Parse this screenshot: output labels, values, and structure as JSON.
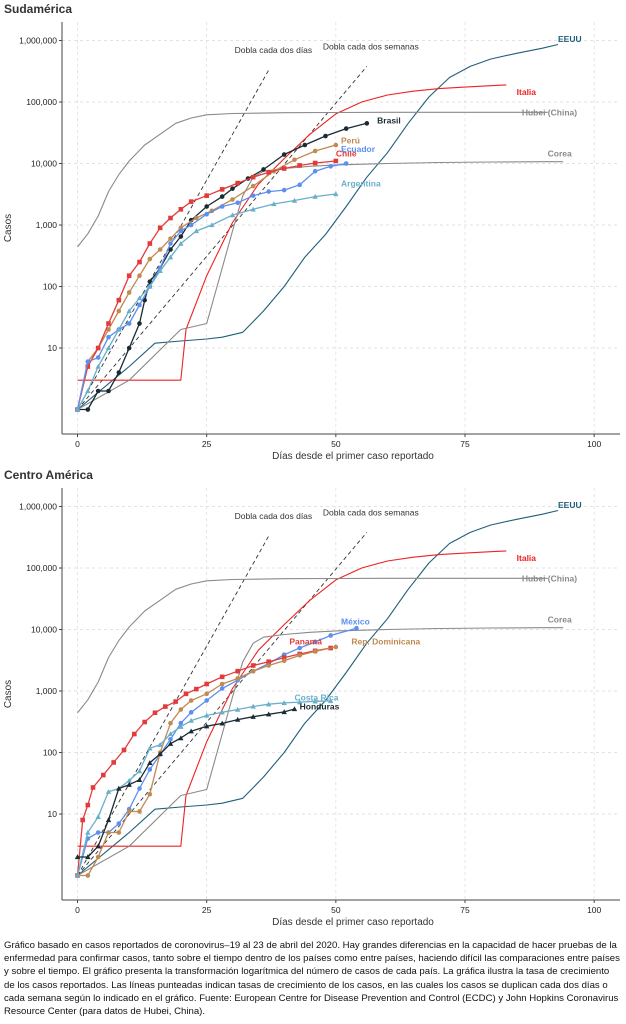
{
  "caption": "Gráfico basado en casos reportados de coronovirus–19 al 23 de abril del 2020. Hay grandes diferencias en la capacidad de hacer pruebas de la enfermedad para confirmar casos, tanto sobre el tiempo dentro de los países como entre países, haciendo difícil las comparaciones entre países y sobre el tiempo.  El gráfico presenta la transformación logarítmica del número de casos de cada país. La gráfica ilustra la tasa de crecimiento de los casos reportados. Las líneas punteadas indican tasas de crecimiento de los casos, en las cuales los casos se duplican cada dos días o cada semana según lo indicado en el gráfico. Fuente: European Centre for Disease Prevention and Control (ECDC) y John Hopkins Coronavirus Resource Center (para datos de Hubei, China).",
  "colors": {
    "EEUU": "#1f5f7a",
    "Italia": "#ee2222",
    "Hubei (China)": "#8a8a8a",
    "Corea": "#8a8a8a",
    "Brasil": "#1a2b33",
    "Perú": "#c08a50",
    "Chile": "#e23b3b",
    "Ecuador": "#5b8ff0",
    "Argentina": "#69afc9",
    "México": "#5b8ff0",
    "Panamá": "#e23b3b",
    "Rep. Dominicana": "#c08a50",
    "Costa Rica": "#69afc9",
    "Honduras": "#1a2b33"
  },
  "chart_data": [
    {
      "type": "line",
      "title": "Sudamérica",
      "xlabel": "Días desde el primer caso reportado",
      "ylabel": "Casos",
      "xlim": [
        -3,
        105
      ],
      "ylim": [
        0.4,
        2000000
      ],
      "yscale": "log",
      "grid": true,
      "xticks": [
        0,
        25,
        50,
        75,
        100
      ],
      "xtick_labels": [
        "0",
        "25",
        "50",
        "75",
        "100"
      ],
      "yticks": [
        10,
        100,
        1000,
        10000,
        100000,
        1000000
      ],
      "ytick_labels": [
        "10",
        "100",
        "1,000",
        "10,000",
        "100,000",
        "1,000,000"
      ],
      "reference_lines": [
        {
          "name": "Dobla cada dos días",
          "points": [
            [
              0,
              1
            ],
            [
              37,
              330000
            ]
          ]
        },
        {
          "name": "Dobla cada dos semanas",
          "points": [
            [
              0,
              1
            ],
            [
              56,
              380000
            ]
          ]
        }
      ],
      "series": [
        {
          "name": "EEUU",
          "marker": "none",
          "label_at": [
            93,
            950000
          ],
          "x": [
            0,
            10,
            15,
            20,
            25,
            28,
            32,
            36,
            40,
            44,
            48,
            52,
            56,
            60,
            64,
            68,
            72,
            76,
            80,
            85,
            90,
            93
          ],
          "y": [
            1,
            5,
            12,
            13,
            14,
            15,
            18,
            40,
            100,
            300,
            700,
            2000,
            6000,
            15000,
            45000,
            120000,
            250000,
            380000,
            500000,
            620000,
            750000,
            860000
          ]
        },
        {
          "name": "Italia",
          "marker": "none",
          "label_at": [
            85,
            130000
          ],
          "x": [
            0,
            20,
            21,
            25,
            30,
            35,
            40,
            45,
            50,
            55,
            60,
            65,
            70,
            75,
            80,
            83
          ],
          "y": [
            3,
            3,
            20,
            150,
            1100,
            4600,
            12000,
            30000,
            64000,
            100000,
            130000,
            150000,
            165000,
            175000,
            184000,
            190000
          ]
        },
        {
          "name": "Hubei (China)",
          "marker": "none",
          "label_at": [
            86,
            60000
          ],
          "x": [
            0,
            2,
            4,
            6,
            8,
            10,
            13,
            16,
            19,
            22,
            25,
            30,
            40,
            50,
            60,
            70,
            80,
            91
          ],
          "y": [
            440,
            720,
            1400,
            3500,
            6600,
            11000,
            20000,
            30000,
            45000,
            55000,
            62000,
            65000,
            67000,
            67500,
            68000,
            68100,
            68100,
            68130
          ]
        },
        {
          "name": "Corea",
          "marker": "none",
          "label_at": [
            91,
            13000
          ],
          "x": [
            0,
            10,
            20,
            25,
            28,
            30,
            32,
            34,
            36,
            40,
            45,
            50,
            60,
            70,
            80,
            90,
            94
          ],
          "y": [
            1,
            3,
            20,
            25,
            200,
            800,
            3000,
            6000,
            7500,
            8300,
            9000,
            9500,
            10000,
            10400,
            10600,
            10700,
            10700
          ]
        },
        {
          "name": "Brasil",
          "marker": "circle",
          "label_at": [
            58,
            45000
          ],
          "x": [
            0,
            2,
            4,
            6,
            8,
            10,
            12,
            13,
            14,
            16,
            18,
            20,
            22,
            25,
            28,
            30,
            33,
            36,
            40,
            44,
            48,
            52,
            56
          ],
          "y": [
            1,
            1,
            2,
            2,
            4,
            10,
            25,
            60,
            120,
            200,
            400,
            650,
            1200,
            2000,
            2900,
            3900,
            5700,
            8000,
            14000,
            20000,
            28000,
            37000,
            45000
          ]
        },
        {
          "name": "Perú",
          "marker": "circle",
          "label_at": [
            51,
            21000
          ],
          "x": [
            0,
            2,
            4,
            6,
            8,
            10,
            12,
            14,
            16,
            18,
            20,
            23,
            26,
            30,
            34,
            38,
            42,
            46,
            50
          ],
          "y": [
            1,
            6,
            10,
            20,
            40,
            80,
            150,
            280,
            400,
            600,
            900,
            1300,
            1700,
            2600,
            4300,
            7500,
            11500,
            16000,
            20000
          ]
        },
        {
          "name": "Chile",
          "marker": "square",
          "label_at": [
            50,
            13000
          ],
          "x": [
            0,
            2,
            4,
            6,
            8,
            10,
            12,
            14,
            16,
            18,
            20,
            22,
            25,
            28,
            31,
            34,
            37,
            40,
            43,
            46,
            50
          ],
          "y": [
            1,
            5,
            10,
            25,
            60,
            150,
            250,
            500,
            900,
            1300,
            1800,
            2400,
            3000,
            3800,
            4800,
            6000,
            7200,
            8300,
            9300,
            10200,
            11000
          ]
        },
        {
          "name": "Ecuador",
          "marker": "circle",
          "label_at": [
            51,
            15500
          ],
          "x": [
            0,
            2,
            4,
            6,
            8,
            10,
            12,
            14,
            16,
            18,
            20,
            22,
            25,
            28,
            31,
            34,
            37,
            40,
            43,
            46,
            49,
            52
          ],
          "y": [
            1,
            6,
            7,
            15,
            20,
            25,
            50,
            100,
            200,
            500,
            800,
            1000,
            1500,
            2000,
            2300,
            3000,
            3500,
            3700,
            4500,
            7500,
            9000,
            10000
          ]
        },
        {
          "name": "Argentina",
          "marker": "triangle",
          "label_at": [
            51,
            4200
          ],
          "x": [
            0,
            2,
            4,
            6,
            8,
            10,
            12,
            14,
            16,
            18,
            20,
            23,
            26,
            30,
            34,
            38,
            42,
            46,
            50
          ],
          "y": [
            1,
            2,
            5,
            10,
            20,
            40,
            65,
            100,
            180,
            300,
            500,
            800,
            1000,
            1450,
            1800,
            2200,
            2500,
            2900,
            3200
          ]
        }
      ]
    },
    {
      "type": "line",
      "title": "Centro América",
      "xlabel": "Días desde el primer caso reportado",
      "ylabel": "Casos",
      "xlim": [
        -3,
        105
      ],
      "ylim": [
        0.4,
        2000000
      ],
      "yscale": "log",
      "grid": true,
      "xticks": [
        0,
        25,
        50,
        75,
        100
      ],
      "xtick_labels": [
        "0",
        "25",
        "50",
        "75",
        "100"
      ],
      "yticks": [
        10,
        100,
        1000,
        10000,
        100000,
        1000000
      ],
      "ytick_labels": [
        "10",
        "100",
        "1,000",
        "10,000",
        "100,000",
        "1,000,000"
      ],
      "reference_lines": [
        {
          "name": "Dobla cada dos días",
          "points": [
            [
              0,
              1
            ],
            [
              37,
              330000
            ]
          ]
        },
        {
          "name": "Dobla cada dos semanas",
          "points": [
            [
              0,
              1
            ],
            [
              56,
              380000
            ]
          ]
        }
      ],
      "series": [
        {
          "name": "EEUU",
          "marker": "none",
          "label_at": [
            93,
            950000
          ],
          "x": [
            0,
            10,
            15,
            20,
            25,
            28,
            32,
            36,
            40,
            44,
            48,
            52,
            56,
            60,
            64,
            68,
            72,
            76,
            80,
            85,
            90,
            93
          ],
          "y": [
            1,
            5,
            12,
            13,
            14,
            15,
            18,
            40,
            100,
            300,
            700,
            2000,
            6000,
            15000,
            45000,
            120000,
            250000,
            380000,
            500000,
            620000,
            750000,
            860000
          ]
        },
        {
          "name": "Italia",
          "marker": "none",
          "label_at": [
            85,
            130000
          ],
          "x": [
            0,
            20,
            21,
            25,
            30,
            35,
            40,
            45,
            50,
            55,
            60,
            65,
            70,
            75,
            80,
            83
          ],
          "y": [
            3,
            3,
            20,
            150,
            1100,
            4600,
            12000,
            30000,
            64000,
            100000,
            130000,
            150000,
            165000,
            175000,
            184000,
            190000
          ]
        },
        {
          "name": "Hubei (China)",
          "marker": "none",
          "label_at": [
            86,
            60000
          ],
          "x": [
            0,
            2,
            4,
            6,
            8,
            10,
            13,
            16,
            19,
            22,
            25,
            30,
            40,
            50,
            60,
            70,
            80,
            91
          ],
          "y": [
            440,
            720,
            1400,
            3500,
            6600,
            11000,
            20000,
            30000,
            45000,
            55000,
            62000,
            65000,
            67000,
            67500,
            68000,
            68100,
            68100,
            68130
          ]
        },
        {
          "name": "Corea",
          "marker": "none",
          "label_at": [
            91,
            13000
          ],
          "x": [
            0,
            10,
            20,
            25,
            28,
            30,
            32,
            34,
            36,
            40,
            45,
            50,
            60,
            70,
            80,
            90,
            94
          ],
          "y": [
            1,
            3,
            20,
            25,
            200,
            800,
            3000,
            6000,
            7500,
            8300,
            9000,
            9500,
            10000,
            10400,
            10600,
            10700,
            10700
          ]
        },
        {
          "name": "México",
          "marker": "circle",
          "label_at": [
            51,
            12000
          ],
          "x": [
            0,
            2,
            4,
            6,
            8,
            10,
            12,
            14,
            16,
            18,
            20,
            22,
            25,
            28,
            31,
            34,
            37,
            40,
            43,
            46,
            49,
            54
          ],
          "y": [
            1,
            4,
            5,
            5,
            7,
            12,
            26,
            53,
            93,
            164,
            300,
            450,
            700,
            1100,
            1500,
            2100,
            2800,
            3900,
            5000,
            6300,
            8000,
            10500
          ]
        },
        {
          "name": "Panamá",
          "marker": "square",
          "label_at": [
            41,
            5700
          ],
          "x": [
            0,
            1,
            2,
            3,
            5,
            7,
            9,
            11,
            13,
            15,
            17,
            19,
            21,
            23,
            25,
            28,
            31,
            34,
            37,
            40,
            43,
            46,
            49
          ],
          "y": [
            1,
            8,
            14,
            27,
            43,
            69,
            110,
            200,
            313,
            443,
            558,
            674,
            901,
            1075,
            1300,
            1700,
            2100,
            2600,
            3000,
            3500,
            4000,
            4500,
            5000
          ]
        },
        {
          "name": "Rep. Dominicana",
          "marker": "circle",
          "label_at": [
            53,
            5700
          ],
          "x": [
            0,
            2,
            4,
            6,
            8,
            10,
            12,
            14,
            16,
            18,
            20,
            22,
            25,
            28,
            31,
            34,
            37,
            40,
            43,
            46,
            50
          ],
          "y": [
            1,
            1,
            2,
            5,
            5,
            11,
            11,
            21,
            100,
            300,
            500,
            700,
            900,
            1300,
            1600,
            2100,
            2600,
            3100,
            3800,
            4400,
            5200
          ]
        },
        {
          "name": "Costa Rica",
          "marker": "triangle",
          "label_at": [
            42,
            700
          ],
          "x": [
            0,
            2,
            4,
            6,
            8,
            10,
            12,
            14,
            16,
            18,
            20,
            22,
            25,
            28,
            31,
            34,
            37,
            40,
            43,
            46,
            49
          ],
          "y": [
            1,
            5,
            9,
            23,
            26,
            35,
            50,
            117,
            134,
            201,
            263,
            330,
            400,
            450,
            500,
            560,
            610,
            640,
            660,
            680,
            690
          ]
        },
        {
          "name": "Honduras",
          "marker": "triangle",
          "label_at": [
            43,
            500
          ],
          "x": [
            0,
            2,
            4,
            6,
            8,
            10,
            12,
            14,
            16,
            18,
            20,
            22,
            25,
            28,
            31,
            34,
            37,
            40,
            42
          ],
          "y": [
            2,
            2,
            3,
            8,
            26,
            30,
            36,
            68,
            95,
            139,
            172,
            222,
            268,
            298,
            343,
            382,
            419,
            457,
            510
          ]
        }
      ]
    }
  ]
}
